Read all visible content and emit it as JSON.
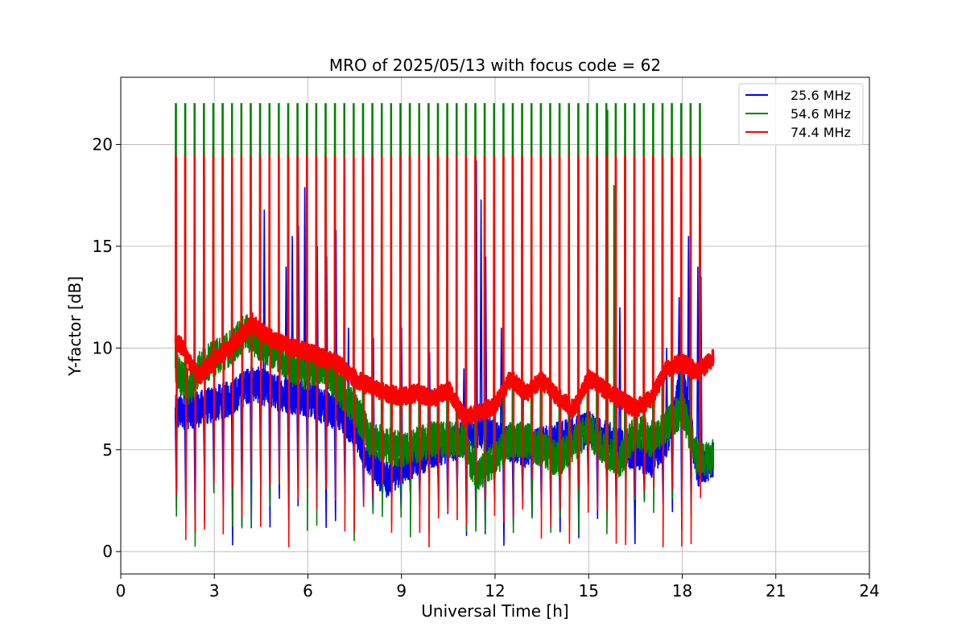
{
  "chart_data": {
    "type": "line",
    "title": "MRO of 2025/05/13 with focus code = 62",
    "xlabel": "Universal Time [h]",
    "ylabel": "Y-factor [dB]",
    "xlim": [
      0,
      24
    ],
    "ylim": [
      -1.1,
      23.3
    ],
    "xticks": [
      0,
      3,
      6,
      9,
      12,
      15,
      18,
      21,
      24
    ],
    "yticks": [
      0,
      5,
      10,
      15,
      20
    ],
    "grid": true,
    "legend_position": "top-right",
    "x_start": 1.75,
    "x_end": 19.0,
    "calibration_interval_h": 0.3,
    "series": [
      {
        "name": "25.6 MHz",
        "color": "#0000ff",
        "baseline": [
          [
            1.75,
            6.8
          ],
          [
            2.5,
            7.0
          ],
          [
            3.5,
            7.5
          ],
          [
            4.2,
            8.3
          ],
          [
            5.0,
            7.8
          ],
          [
            6.0,
            7.5
          ],
          [
            7.0,
            6.8
          ],
          [
            7.5,
            6.0
          ],
          [
            8.0,
            4.5
          ],
          [
            8.5,
            3.5
          ],
          [
            9.0,
            4.2
          ],
          [
            10.0,
            5.0
          ],
          [
            11.0,
            5.5
          ],
          [
            11.5,
            6.0
          ],
          [
            12.0,
            5.5
          ],
          [
            13.0,
            5.0
          ],
          [
            14.0,
            5.5
          ],
          [
            15.0,
            6.0
          ],
          [
            16.0,
            5.2
          ],
          [
            17.0,
            4.5
          ],
          [
            17.5,
            5.5
          ],
          [
            18.0,
            8.5
          ],
          [
            18.5,
            4.0
          ],
          [
            19.0,
            4.5
          ]
        ],
        "peaks": [
          [
            4.6,
            16.8
          ],
          [
            5.3,
            14.0
          ],
          [
            5.5,
            15.5
          ],
          [
            5.7,
            16.0
          ],
          [
            5.9,
            17.9
          ],
          [
            6.3,
            15.0
          ],
          [
            6.6,
            14.5
          ],
          [
            6.9,
            15.8
          ],
          [
            7.3,
            11.0
          ],
          [
            8.1,
            10.5
          ],
          [
            9.0,
            11.0
          ],
          [
            9.9,
            9.8
          ],
          [
            11.0,
            9.0
          ],
          [
            11.4,
            19.2
          ],
          [
            11.55,
            17.3
          ],
          [
            11.7,
            14.5
          ],
          [
            12.2,
            11.0
          ],
          [
            16.0,
            12.0
          ],
          [
            17.5,
            10.0
          ],
          [
            17.9,
            12.5
          ],
          [
            18.2,
            15.5
          ],
          [
            18.5,
            14.0
          ],
          [
            18.6,
            13.5
          ]
        ]
      },
      {
        "name": "54.6 MHz",
        "color": "#008000",
        "baseline": [
          [
            1.75,
            9.0
          ],
          [
            2.2,
            8.0
          ],
          [
            2.5,
            9.0
          ],
          [
            3.0,
            9.5
          ],
          [
            3.5,
            10.0
          ],
          [
            4.0,
            10.8
          ],
          [
            4.5,
            10.2
          ],
          [
            5.0,
            9.8
          ],
          [
            5.5,
            9.0
          ],
          [
            6.0,
            8.8
          ],
          [
            6.5,
            9.2
          ],
          [
            7.0,
            8.0
          ],
          [
            7.5,
            7.0
          ],
          [
            7.8,
            6.2
          ],
          [
            8.0,
            5.5
          ],
          [
            9.0,
            5.0
          ],
          [
            10.0,
            5.5
          ],
          [
            11.0,
            5.5
          ],
          [
            11.2,
            4.5
          ],
          [
            11.5,
            3.8
          ],
          [
            12.0,
            4.5
          ],
          [
            12.5,
            5.5
          ],
          [
            13.0,
            5.5
          ],
          [
            14.0,
            4.5
          ],
          [
            14.5,
            5.2
          ],
          [
            15.0,
            6.0
          ],
          [
            15.5,
            5.0
          ],
          [
            16.0,
            4.5
          ],
          [
            16.5,
            6.0
          ],
          [
            17.0,
            5.5
          ],
          [
            17.5,
            6.2
          ],
          [
            18.0,
            7.0
          ],
          [
            18.5,
            4.5
          ],
          [
            19.0,
            4.6
          ]
        ],
        "calibration_level": 22.0,
        "spikes": [
          [
            15.6,
            21.7
          ],
          [
            15.8,
            18.0
          ]
        ]
      },
      {
        "name": "74.4 MHz",
        "color": "#ff0000",
        "baseline": [
          [
            1.75,
            10.4
          ],
          [
            2.0,
            10.0
          ],
          [
            2.3,
            9.0
          ],
          [
            2.5,
            8.6
          ],
          [
            3.0,
            9.4
          ],
          [
            3.5,
            10.0
          ],
          [
            4.0,
            10.8
          ],
          [
            4.2,
            11.3
          ],
          [
            4.5,
            10.8
          ],
          [
            5.0,
            10.3
          ],
          [
            5.5,
            10.0
          ],
          [
            6.0,
            9.8
          ],
          [
            6.5,
            9.5
          ],
          [
            7.0,
            9.2
          ],
          [
            7.5,
            8.5
          ],
          [
            8.0,
            8.1
          ],
          [
            8.5,
            7.8
          ],
          [
            9.0,
            7.6
          ],
          [
            9.5,
            7.8
          ],
          [
            10.0,
            7.5
          ],
          [
            10.5,
            8.0
          ],
          [
            11.0,
            6.6
          ],
          [
            11.5,
            6.8
          ],
          [
            12.0,
            7.2
          ],
          [
            12.5,
            8.5
          ],
          [
            13.0,
            7.8
          ],
          [
            13.5,
            8.4
          ],
          [
            14.0,
            7.6
          ],
          [
            14.5,
            7.0
          ],
          [
            15.0,
            8.5
          ],
          [
            15.5,
            8.0
          ],
          [
            16.0,
            7.5
          ],
          [
            16.5,
            7.0
          ],
          [
            17.0,
            7.5
          ],
          [
            17.5,
            9.0
          ],
          [
            18.0,
            9.3
          ],
          [
            18.5,
            8.8
          ],
          [
            19.0,
            9.5
          ]
        ],
        "calibration_level": 19.4
      }
    ]
  }
}
